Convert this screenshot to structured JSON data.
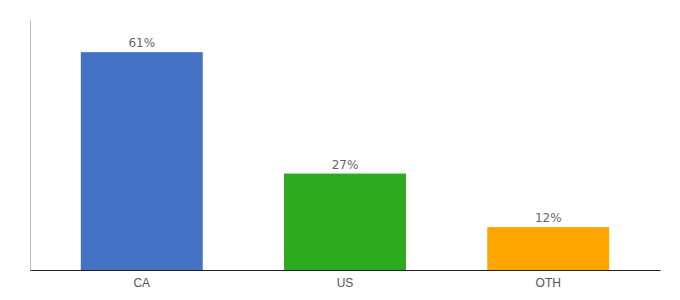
{
  "chart_data": {
    "type": "bar",
    "categories": [
      "CA",
      "US",
      "OTH"
    ],
    "values": [
      61,
      27,
      12
    ],
    "value_labels": [
      "61%",
      "27%",
      "12%"
    ],
    "colors": [
      "#4472C4",
      "#2EAA1E",
      "#FFA500"
    ],
    "ylim": [
      0,
      70
    ],
    "data_labels": true,
    "tick_labels": "x"
  }
}
